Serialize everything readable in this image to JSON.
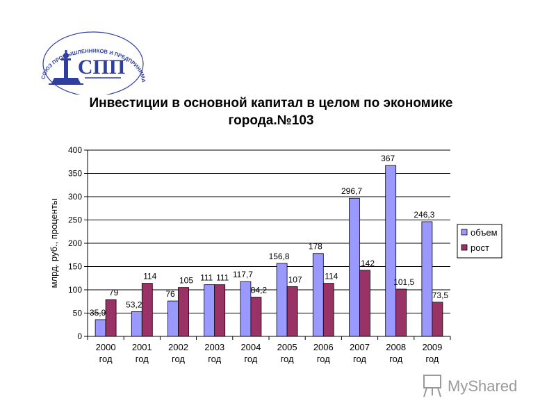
{
  "logo": {
    "ring_text": "СОЮЗ ПРОМЫШЛЕННИКОВ И ПРЕДПРИНИМАТЕЛЕЙ САНКТ-ПЕТЕРБУРГА",
    "monogram": "СПП",
    "color": "#2e3f9e"
  },
  "watermark": {
    "text": "MyShared",
    "color": "#9a9a9a"
  },
  "chart_data": {
    "type": "bar",
    "title_line1": "Инвестиции в основной капитал в целом по экономике",
    "title_line2": "города.№103",
    "ylabel": "млрд. руб., проценты",
    "xlabel": "",
    "ylim": [
      0,
      400
    ],
    "yticks": [
      0,
      50,
      100,
      150,
      200,
      250,
      300,
      350,
      400
    ],
    "grid": true,
    "legend_position": "right",
    "categories": [
      [
        "2000",
        "год"
      ],
      [
        "2001",
        "год"
      ],
      [
        "2002",
        "год"
      ],
      [
        "2003",
        "год"
      ],
      [
        "2004",
        "год"
      ],
      [
        "2005",
        "год"
      ],
      [
        "2006",
        "год"
      ],
      [
        "2007",
        "год"
      ],
      [
        "2008",
        "год"
      ],
      [
        "2009",
        "год"
      ]
    ],
    "series": [
      {
        "name": "объем",
        "color": "#9999ff",
        "values": [
          35.9,
          53.2,
          76,
          111,
          117.7,
          156.8,
          178,
          296.7,
          367,
          246.3
        ],
        "labels": [
          "35,9",
          "53,2",
          "76",
          "111",
          "117,7",
          "156,8",
          "178",
          "296,7",
          "367",
          "246,3"
        ]
      },
      {
        "name": "рост",
        "color": "#993366",
        "values": [
          79,
          114,
          105,
          111,
          84.2,
          107,
          114,
          142,
          101.5,
          73.5
        ],
        "labels": [
          "79",
          "114",
          "105",
          "111",
          "84,2",
          "107",
          "114",
          "142",
          "101,5",
          "73,5"
        ]
      }
    ]
  }
}
